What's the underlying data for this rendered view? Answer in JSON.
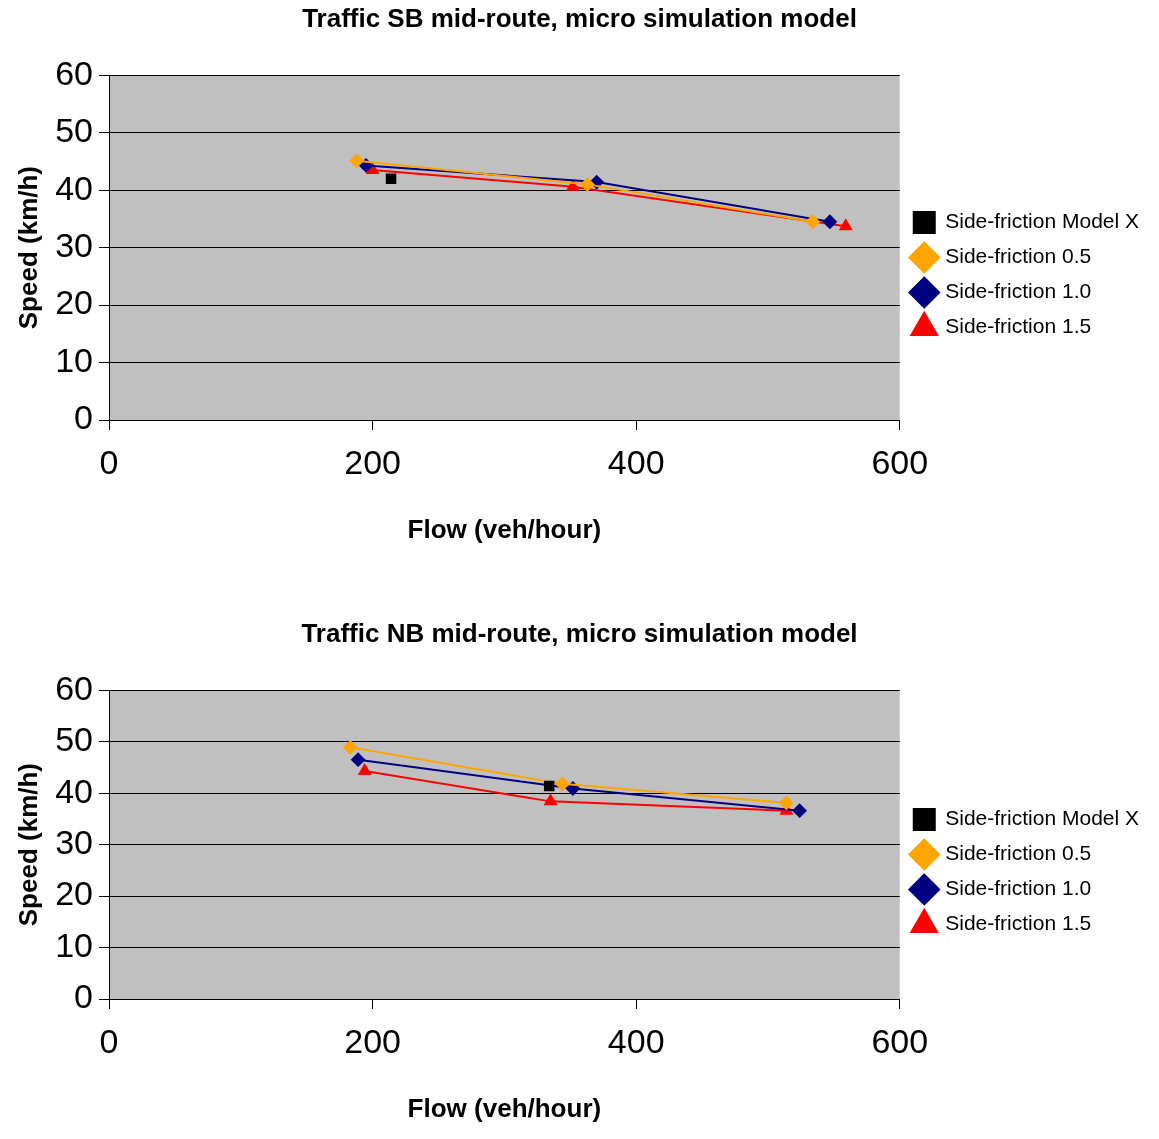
{
  "chart_data": [
    {
      "type": "line",
      "title": "Traffic SB mid-route, micro simulation model",
      "xlabel": "Flow (veh/hour)",
      "ylabel": "Speed (km/h)",
      "xlim": [
        0,
        600
      ],
      "xticks": [
        0,
        200,
        400,
        600
      ],
      "ylim": [
        0,
        60
      ],
      "yticks": [
        0,
        10,
        20,
        30,
        40,
        50,
        60
      ],
      "grid": "y",
      "legend": "right",
      "series": [
        {
          "name": "Side-friction Model X",
          "color": "#000000",
          "marker": "square",
          "x": [
            214
          ],
          "values": [
            42.0
          ]
        },
        {
          "name": "Side-friction 0.5",
          "color": "#ffa500",
          "marker": "diamond",
          "x": [
            188,
            363,
            534
          ],
          "values": [
            45.1,
            41.0,
            34.5
          ]
        },
        {
          "name": "Side-friction 1.0",
          "color": "#000080",
          "marker": "diamond",
          "x": [
            195,
            370,
            547
          ],
          "values": [
            44.3,
            41.4,
            34.5
          ]
        },
        {
          "name": "Side-friction 1.5",
          "color": "#ff0000",
          "marker": "triangle",
          "x": [
            200,
            352,
            559
          ],
          "values": [
            43.5,
            40.6,
            33.7
          ]
        }
      ]
    },
    {
      "type": "line",
      "title": "Traffic NB mid-route, micro simulation model",
      "xlabel": "Flow (veh/hour)",
      "ylabel": "Speed (km/h)",
      "xlim": [
        0,
        600
      ],
      "xticks": [
        0,
        200,
        400,
        600
      ],
      "ylim": [
        0,
        60
      ],
      "yticks": [
        0,
        10,
        20,
        30,
        40,
        50,
        60
      ],
      "grid": "y",
      "legend": "right",
      "series": [
        {
          "name": "Side-friction Model X",
          "color": "#000000",
          "marker": "square",
          "x": [
            334
          ],
          "values": [
            41.4
          ]
        },
        {
          "name": "Side-friction 0.5",
          "color": "#ffa500",
          "marker": "diamond",
          "x": [
            183,
            344,
            514
          ],
          "values": [
            48.9,
            41.8,
            38.1
          ]
        },
        {
          "name": "Side-friction 1.0",
          "color": "#000080",
          "marker": "diamond",
          "x": [
            189,
            352,
            524
          ],
          "values": [
            46.5,
            40.9,
            36.6
          ]
        },
        {
          "name": "Side-friction 1.5",
          "color": "#ff0000",
          "marker": "triangle",
          "x": [
            194,
            335,
            514
          ],
          "values": [
            44.3,
            38.4,
            36.6
          ]
        }
      ]
    }
  ]
}
